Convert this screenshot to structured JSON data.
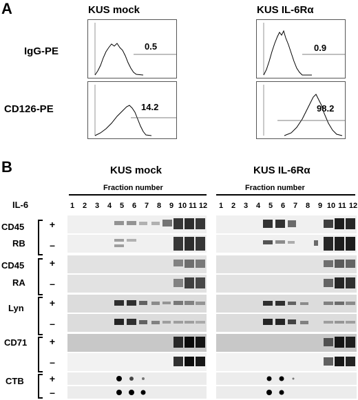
{
  "panel_a": {
    "letter": "A",
    "columns": [
      "KUS mock",
      "KUS IL-6Rα"
    ],
    "rows": [
      "IgG-PE",
      "CD126-PE"
    ],
    "values": [
      [
        "0.5",
        "0.9"
      ],
      [
        "14.2",
        "98.2"
      ]
    ]
  },
  "panel_b": {
    "letter": "B",
    "columns": [
      "KUS mock",
      "KUS IL-6Rα"
    ],
    "fraction_label": "Fraction number",
    "fractions": [
      "1",
      "2",
      "3",
      "4",
      "5",
      "6",
      "7",
      "8",
      "9",
      "10",
      "11",
      "12"
    ],
    "il6_label": "IL-6",
    "plus": "+",
    "minus": "–",
    "groups": [
      {
        "line1": "CD45",
        "line2": "RB"
      },
      {
        "line1": "CD45",
        "line2": "RA"
      },
      {
        "line1": "Lyn",
        "line2": ""
      },
      {
        "line1": "CD71",
        "line2": ""
      },
      {
        "line1": "CTB",
        "line2": ""
      }
    ]
  },
  "colors": {
    "blot_band": "#000000",
    "background": "#ffffff",
    "bracket": "#000000"
  }
}
